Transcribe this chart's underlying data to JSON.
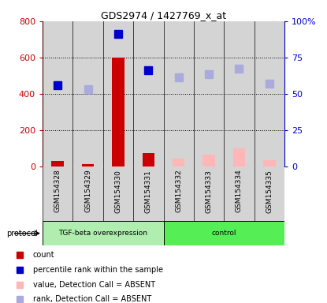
{
  "title": "GDS2974 / 1427769_x_at",
  "samples": [
    "GSM154328",
    "GSM154329",
    "GSM154330",
    "GSM154331",
    "GSM154332",
    "GSM154333",
    "GSM154334",
    "GSM154335"
  ],
  "n_tgf": 4,
  "count_values": [
    30,
    15,
    600,
    75,
    0,
    0,
    0,
    0
  ],
  "count_color": "#CC0000",
  "percentile_rank_values": [
    450,
    null,
    730,
    530,
    null,
    null,
    null,
    null
  ],
  "percentile_rank_color": "#0000CC",
  "value_absent_values": [
    null,
    20,
    null,
    75,
    45,
    65,
    100,
    35
  ],
  "value_absent_color": "#FFB6B6",
  "rank_absent_values": [
    null,
    425,
    null,
    null,
    490,
    510,
    540,
    455
  ],
  "rank_absent_color": "#AAAADD",
  "ylim_left": [
    0,
    800
  ],
  "yticks_left": [
    0,
    200,
    400,
    600,
    800
  ],
  "ytick_labels_left": [
    "0",
    "200",
    "400",
    "600",
    "800"
  ],
  "ytick_labels_right": [
    "0",
    "25",
    "50",
    "75",
    "100%"
  ],
  "left_axis_color": "#CC0000",
  "right_axis_color": "#0000CC",
  "grid_lines": [
    200,
    400,
    600
  ],
  "protocol_label": "protocol",
  "tgf_label": "TGF-beta overexpression",
  "control_label": "control",
  "tgf_color": "#B0EEB0",
  "control_color": "#55EE55",
  "col_bg_color": "#D4D4D4",
  "legend_items": [
    {
      "label": "count",
      "color": "#CC0000"
    },
    {
      "label": "percentile rank within the sample",
      "color": "#0000CC"
    },
    {
      "label": "value, Detection Call = ABSENT",
      "color": "#FFB6B6"
    },
    {
      "label": "rank, Detection Call = ABSENT",
      "color": "#AAAADD"
    }
  ]
}
